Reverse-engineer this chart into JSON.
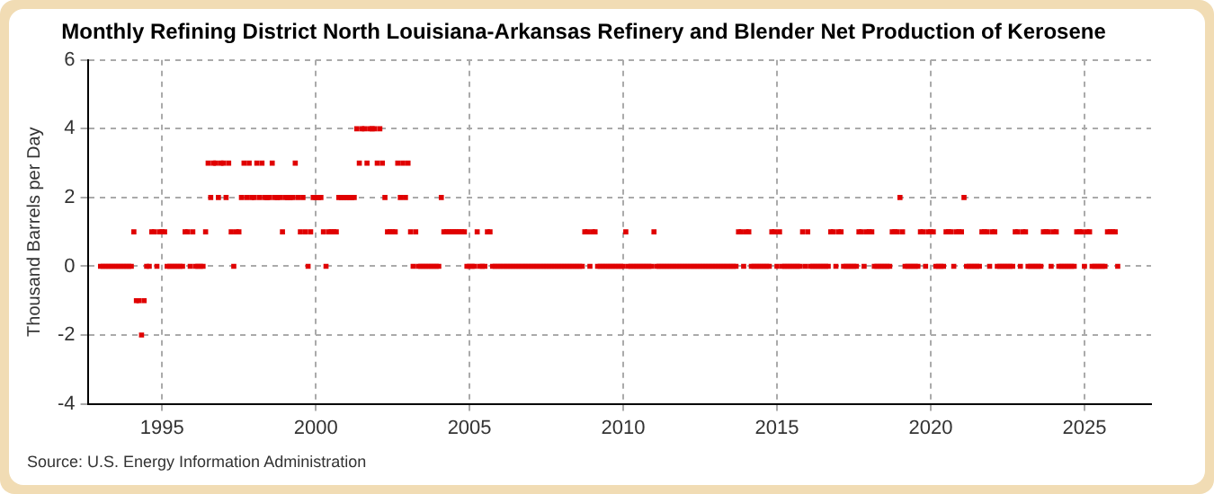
{
  "chart_data": {
    "type": "scatter",
    "title": "Monthly Refining District North Louisiana-Arkansas Refinery and Blender Net Production of Kerosene",
    "ylabel": "Thousand Barrels per Day",
    "color": "#e00000",
    "marker": "square",
    "grid": true,
    "xlim": [
      "1992-08",
      "2027-03"
    ],
    "xticks": [
      "1995",
      "2000",
      "2005",
      "2010",
      "2015",
      "2020",
      "2025"
    ],
    "ylim": [
      -4,
      6
    ],
    "yticks": [
      -4,
      -2,
      0,
      2,
      4,
      6
    ],
    "annotations": [
      "Source: U.S. Energy Information Administration"
    ],
    "x": [
      "1993-01",
      "1993-02",
      "1993-03",
      "1993-04",
      "1993-05",
      "1993-06",
      "1993-07",
      "1993-08",
      "1993-09",
      "1993-10",
      "1993-11",
      "1993-12",
      "1994-01",
      "1994-02",
      "1994-03",
      "1994-04",
      "1994-05",
      "1994-06",
      "1994-07",
      "1994-08",
      "1994-09",
      "1994-10",
      "1994-11",
      "1994-12",
      "1995-01",
      "1995-02",
      "1995-03",
      "1995-04",
      "1995-05",
      "1995-06",
      "1995-07",
      "1995-08",
      "1995-09",
      "1995-10",
      "1995-11",
      "1995-12",
      "1996-01",
      "1996-02",
      "1996-03",
      "1996-04",
      "1996-05",
      "1996-06",
      "1996-07",
      "1996-08",
      "1996-09",
      "1996-10",
      "1996-11",
      "1996-12",
      "1997-01",
      "1997-02",
      "1997-03",
      "1997-04",
      "1997-05",
      "1997-06",
      "1997-07",
      "1997-08",
      "1997-09",
      "1997-10",
      "1997-11",
      "1997-12",
      "1998-01",
      "1998-02",
      "1998-03",
      "1998-04",
      "1998-05",
      "1998-06",
      "1998-07",
      "1998-08",
      "1998-09",
      "1998-10",
      "1998-11",
      "1998-12",
      "1999-01",
      "1999-02",
      "1999-03",
      "1999-04",
      "1999-05",
      "1999-06",
      "1999-07",
      "1999-08",
      "1999-09",
      "1999-10",
      "1999-11",
      "1999-12",
      "2000-01",
      "2000-02",
      "2000-03",
      "2000-04",
      "2000-05",
      "2000-06",
      "2000-07",
      "2000-08",
      "2000-09",
      "2000-10",
      "2000-11",
      "2000-12",
      "2001-01",
      "2001-02",
      "2001-03",
      "2001-04",
      "2001-05",
      "2001-06",
      "2001-07",
      "2001-08",
      "2001-09",
      "2001-10",
      "2001-11",
      "2001-12",
      "2002-01",
      "2002-02",
      "2002-03",
      "2002-04",
      "2002-05",
      "2002-06",
      "2002-07",
      "2002-08",
      "2002-09",
      "2002-10",
      "2002-11",
      "2002-12",
      "2003-01",
      "2003-02",
      "2003-03",
      "2003-04",
      "2003-05",
      "2003-06",
      "2003-07",
      "2003-08",
      "2003-09",
      "2003-10",
      "2003-11",
      "2003-12",
      "2004-01",
      "2004-02",
      "2004-03",
      "2004-04",
      "2004-05",
      "2004-06",
      "2004-07",
      "2004-08",
      "2004-09",
      "2004-10",
      "2004-11",
      "2004-12",
      "2005-01",
      "2005-02",
      "2005-03",
      "2005-04",
      "2005-05",
      "2005-06",
      "2005-07",
      "2005-08",
      "2005-09",
      "2005-10",
      "2005-11",
      "2005-12",
      "2006-01",
      "2006-02",
      "2006-03",
      "2006-04",
      "2006-05",
      "2006-06",
      "2006-07",
      "2006-08",
      "2006-09",
      "2006-10",
      "2006-11",
      "2006-12",
      "2007-01",
      "2007-02",
      "2007-03",
      "2007-04",
      "2007-05",
      "2007-06",
      "2007-07",
      "2007-08",
      "2007-09",
      "2007-10",
      "2007-11",
      "2007-12",
      "2008-01",
      "2008-02",
      "2008-03",
      "2008-04",
      "2008-05",
      "2008-06",
      "2008-07",
      "2008-08",
      "2008-09",
      "2008-10",
      "2008-11",
      "2008-12",
      "2009-01",
      "2009-02",
      "2009-03",
      "2009-04",
      "2009-05",
      "2009-06",
      "2009-07",
      "2009-08",
      "2009-09",
      "2009-10",
      "2009-11",
      "2009-12",
      "2010-01",
      "2010-02",
      "2010-03",
      "2010-04",
      "2010-05",
      "2010-06",
      "2010-07",
      "2010-08",
      "2010-09",
      "2010-10",
      "2010-11",
      "2010-12",
      "2011-01",
      "2011-02",
      "2011-03",
      "2011-04",
      "2011-05",
      "2011-06",
      "2011-07",
      "2011-08",
      "2011-09",
      "2011-10",
      "2011-11",
      "2011-12",
      "2012-01",
      "2012-02",
      "2012-03",
      "2012-04",
      "2012-05",
      "2012-06",
      "2012-07",
      "2012-08",
      "2012-09",
      "2012-10",
      "2012-11",
      "2012-12",
      "2013-01",
      "2013-02",
      "2013-03",
      "2013-04",
      "2013-05",
      "2013-06",
      "2013-07",
      "2013-08",
      "2013-09",
      "2013-10",
      "2013-11",
      "2013-12",
      "2014-01",
      "2014-02",
      "2014-03",
      "2014-04",
      "2014-05",
      "2014-06",
      "2014-07",
      "2014-08",
      "2014-09",
      "2014-10",
      "2014-11",
      "2014-12",
      "2015-01",
      "2015-02",
      "2015-03",
      "2015-04",
      "2015-05",
      "2015-06",
      "2015-07",
      "2015-08",
      "2015-09",
      "2015-10",
      "2015-11",
      "2015-12",
      "2016-01",
      "2016-02",
      "2016-03",
      "2016-04",
      "2016-05",
      "2016-06",
      "2016-07",
      "2016-08",
      "2016-09",
      "2016-10",
      "2016-11",
      "2016-12",
      "2017-01",
      "2017-02",
      "2017-03",
      "2017-04",
      "2017-05",
      "2017-06",
      "2017-07",
      "2017-08",
      "2017-09",
      "2017-10",
      "2017-11",
      "2017-12",
      "2018-01",
      "2018-02",
      "2018-03",
      "2018-04",
      "2018-05",
      "2018-06",
      "2018-07",
      "2018-08",
      "2018-09",
      "2018-10",
      "2018-11",
      "2018-12",
      "2019-01",
      "2019-02",
      "2019-03",
      "2019-04",
      "2019-05",
      "2019-06",
      "2019-07",
      "2019-08",
      "2019-09",
      "2019-10",
      "2019-11",
      "2019-12",
      "2020-01",
      "2020-02",
      "2020-03",
      "2020-04",
      "2020-05",
      "2020-06",
      "2020-07",
      "2020-08",
      "2020-09",
      "2020-10",
      "2020-11",
      "2020-12",
      "2021-01",
      "2021-02",
      "2021-03",
      "2021-04",
      "2021-05",
      "2021-06",
      "2021-07",
      "2021-08",
      "2021-09",
      "2021-10",
      "2021-11",
      "2021-12",
      "2022-01",
      "2022-02",
      "2022-03",
      "2022-04",
      "2022-05",
      "2022-06",
      "2022-07",
      "2022-08",
      "2022-09",
      "2022-10",
      "2022-11",
      "2022-12",
      "2023-01",
      "2023-02",
      "2023-03",
      "2023-04",
      "2023-05",
      "2023-06",
      "2023-07",
      "2023-08",
      "2023-09",
      "2023-10",
      "2023-11",
      "2023-12",
      "2024-01",
      "2024-02",
      "2024-03",
      "2024-04",
      "2024-05",
      "2024-06",
      "2024-07",
      "2024-08",
      "2024-09",
      "2024-10",
      "2024-11",
      "2024-12",
      "2025-01",
      "2025-02",
      "2025-03",
      "2025-04",
      "2025-05",
      "2025-06",
      "2025-07",
      "2025-08",
      "2025-09",
      "2025-10",
      "2025-11",
      "2025-12",
      "2026-01",
      "2026-02"
    ],
    "values": [
      0,
      0,
      0,
      0,
      0,
      0,
      0,
      0,
      0,
      0,
      0,
      0,
      0,
      1,
      -1,
      -1,
      -2,
      -1,
      0,
      0,
      1,
      1,
      0,
      1,
      1,
      1,
      0,
      0,
      0,
      0,
      0,
      0,
      0,
      1,
      1,
      0,
      1,
      0,
      0,
      0,
      0,
      1,
      3,
      2,
      3,
      3,
      2,
      3,
      3,
      2,
      3,
      1,
      0,
      1,
      1,
      2,
      3,
      2,
      3,
      2,
      2,
      3,
      2,
      3,
      2,
      2,
      2,
      3,
      2,
      2,
      2,
      1,
      2,
      2,
      2,
      2,
      3,
      2,
      1,
      2,
      1,
      0,
      1,
      2,
      2,
      2,
      2,
      1,
      0,
      1,
      1,
      1,
      1,
      2,
      2,
      2,
      2,
      2,
      2,
      2,
      4,
      3,
      4,
      4,
      3,
      4,
      4,
      4,
      3,
      4,
      3,
      2,
      1,
      1,
      1,
      1,
      3,
      2,
      3,
      2,
      3,
      1,
      0,
      1,
      0,
      0,
      0,
      0,
      0,
      0,
      0,
      0,
      0,
      2,
      1,
      1,
      1,
      1,
      1,
      1,
      1,
      1,
      1,
      0,
      0,
      0,
      0,
      1,
      0,
      0,
      0,
      1,
      1,
      0,
      0,
      0,
      0,
      0,
      0,
      0,
      0,
      0,
      0,
      0,
      0,
      0,
      0,
      0,
      0,
      0,
      0,
      0,
      0,
      0,
      0,
      0,
      0,
      0,
      0,
      0,
      0,
      0,
      0,
      0,
      0,
      0,
      0,
      0,
      0,
      1,
      1,
      0,
      1,
      1,
      0,
      0,
      0,
      0,
      0,
      0,
      0,
      0,
      0,
      0,
      0,
      1,
      0,
      0,
      0,
      0,
      0,
      0,
      0,
      0,
      0,
      0,
      1,
      0,
      0,
      0,
      0,
      0,
      0,
      0,
      0,
      0,
      0,
      0,
      0,
      0,
      0,
      0,
      0,
      0,
      0,
      0,
      0,
      0,
      0,
      0,
      0,
      0,
      0,
      0,
      0,
      0,
      0,
      0,
      0,
      1,
      1,
      0,
      1,
      1,
      0,
      0,
      0,
      0,
      0,
      0,
      0,
      0,
      1,
      1,
      0,
      1,
      0,
      0,
      0,
      0,
      0,
      0,
      0,
      0,
      1,
      0,
      1,
      0,
      0,
      0,
      0,
      0,
      0,
      0,
      0,
      1,
      1,
      0,
      1,
      1,
      0,
      0,
      0,
      0,
      0,
      0,
      1,
      1,
      0,
      1,
      1,
      1,
      0,
      0,
      0,
      0,
      0,
      0,
      0,
      1,
      1,
      1,
      2,
      1,
      0,
      0,
      0,
      0,
      0,
      0,
      1,
      1,
      0,
      1,
      1,
      1,
      0,
      0,
      0,
      0,
      1,
      1,
      1,
      0,
      1,
      1,
      1,
      2,
      0,
      0,
      0,
      0,
      0,
      0,
      1,
      1,
      1,
      0,
      1,
      1,
      0,
      0,
      0,
      0,
      0,
      0,
      0,
      1,
      1,
      0,
      1,
      1,
      0,
      0,
      0,
      0,
      0,
      0,
      1,
      1,
      1,
      0,
      1,
      1,
      0,
      0,
      0,
      0,
      0,
      0,
      0,
      1,
      1,
      1,
      0,
      1,
      1,
      0,
      0,
      0,
      0,
      0,
      0,
      1,
      1,
      1,
      1,
      0
    ]
  }
}
